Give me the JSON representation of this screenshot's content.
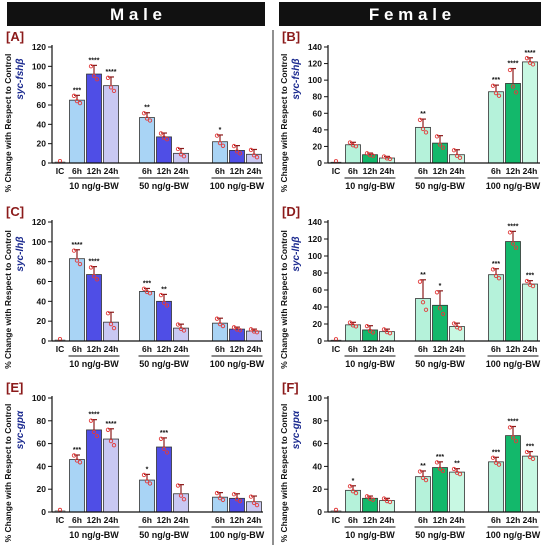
{
  "headers": {
    "male": "M a l e",
    "female": "F e m a l e"
  },
  "colors": {
    "male": [
      "#a9d4f5",
      "#4f4ee6",
      "#c9c8f2"
    ],
    "female": [
      "#b5f2da",
      "#13b86b",
      "#c8f8e3"
    ],
    "control": "#dddddd",
    "error": "#8b1a1a",
    "point": "#e23b3b",
    "panel_label": "#8b1a1a",
    "gene_label": "#1b2a8f"
  },
  "shared": {
    "ylabel": "% Change with Respect to Control",
    "time_labels": [
      "6h",
      "12h",
      "24h"
    ],
    "control_label": "IC",
    "groups": [
      "10 ng/g-BW",
      "50 ng/g-BW",
      "100 ng/g-BW"
    ]
  },
  "chart_data": [
    {
      "panel": "[A]",
      "sex": "male",
      "gene": "syc-fshβ",
      "type": "bar",
      "ylim": [
        0,
        120
      ],
      "ticks": [
        0,
        20,
        40,
        60,
        80,
        100,
        120
      ],
      "control": 1,
      "series": [
        {
          "values": [
            65,
            92,
            80
          ],
          "errors": [
            5,
            9,
            9
          ],
          "sig": [
            "***",
            "****",
            "****"
          ]
        },
        {
          "values": [
            47,
            27,
            10
          ],
          "errors": [
            5,
            4,
            5
          ],
          "sig": [
            "**",
            "",
            ""
          ]
        },
        {
          "values": [
            22,
            13,
            9
          ],
          "errors": [
            7,
            5,
            5
          ],
          "sig": [
            "*",
            "",
            ""
          ]
        }
      ]
    },
    {
      "panel": "[B]",
      "sex": "female",
      "gene": "syc-fshβ",
      "type": "bar",
      "ylim": [
        0,
        140
      ],
      "ticks": [
        0,
        20,
        40,
        60,
        80,
        100,
        120,
        140
      ],
      "control": 1,
      "series": [
        {
          "values": [
            22,
            10,
            6
          ],
          "errors": [
            3,
            2,
            2
          ],
          "sig": [
            "",
            "",
            ""
          ]
        },
        {
          "values": [
            43,
            24,
            10
          ],
          "errors": [
            10,
            9,
            6
          ],
          "sig": [
            "**",
            "",
            ""
          ]
        },
        {
          "values": [
            86,
            96,
            122
          ],
          "errors": [
            8,
            18,
            5
          ],
          "sig": [
            "***",
            "****",
            "****"
          ]
        }
      ]
    },
    {
      "panel": "[C]",
      "sex": "male",
      "gene": "syc-lhβ",
      "type": "bar",
      "ylim": [
        0,
        120
      ],
      "ticks": [
        0,
        20,
        40,
        60,
        80,
        100,
        120
      ],
      "control": 1,
      "series": [
        {
          "values": [
            83,
            67,
            19
          ],
          "errors": [
            9,
            8,
            10
          ],
          "sig": [
            "****",
            "****",
            ""
          ]
        },
        {
          "values": [
            50,
            40,
            13
          ],
          "errors": [
            3,
            7,
            4
          ],
          "sig": [
            "***",
            "**",
            ""
          ]
        },
        {
          "values": [
            18,
            12,
            10
          ],
          "errors": [
            5,
            2,
            2
          ],
          "sig": [
            "",
            "",
            ""
          ]
        }
      ]
    },
    {
      "panel": "[D]",
      "sex": "female",
      "gene": "syc-lhβ",
      "type": "bar",
      "ylim": [
        0,
        140
      ],
      "ticks": [
        0,
        20,
        40,
        60,
        80,
        100,
        120,
        140
      ],
      "control": 1,
      "series": [
        {
          "values": [
            19,
            13,
            11
          ],
          "errors": [
            3,
            5,
            3
          ],
          "sig": [
            "",
            "",
            ""
          ]
        },
        {
          "values": [
            50,
            42,
            17
          ],
          "errors": [
            22,
            17,
            4
          ],
          "sig": [
            "**",
            "*",
            ""
          ]
        },
        {
          "values": [
            78,
            117,
            67
          ],
          "errors": [
            7,
            12,
            4
          ],
          "sig": [
            "***",
            "****",
            "***"
          ]
        }
      ]
    },
    {
      "panel": "[E]",
      "sex": "male",
      "gene": "syc-gpα",
      "type": "bar",
      "ylim": [
        0,
        100
      ],
      "ticks": [
        0,
        20,
        40,
        60,
        80,
        100
      ],
      "control": 1,
      "series": [
        {
          "values": [
            46,
            72,
            64
          ],
          "errors": [
            4,
            9,
            9
          ],
          "sig": [
            "***",
            "****",
            "****"
          ]
        },
        {
          "values": [
            28,
            57,
            16
          ],
          "errors": [
            5,
            8,
            8
          ],
          "sig": [
            "*",
            "***",
            ""
          ]
        },
        {
          "values": [
            13,
            12,
            9
          ],
          "errors": [
            4,
            4,
            5
          ],
          "sig": [
            "",
            "",
            ""
          ]
        }
      ]
    },
    {
      "panel": "[F]",
      "sex": "female",
      "gene": "syc-gpα",
      "type": "bar",
      "ylim": [
        0,
        100
      ],
      "ticks": [
        0,
        20,
        40,
        60,
        80,
        100
      ],
      "control": 1,
      "series": [
        {
          "values": [
            19,
            12,
            10
          ],
          "errors": [
            4,
            2,
            2
          ],
          "sig": [
            "*",
            "",
            ""
          ]
        },
        {
          "values": [
            31,
            39,
            35
          ],
          "errors": [
            5,
            5,
            3
          ],
          "sig": [
            "**",
            "***",
            "**"
          ]
        },
        {
          "values": [
            44,
            67,
            49
          ],
          "errors": [
            4,
            8,
            4
          ],
          "sig": [
            "***",
            "****",
            "***"
          ]
        }
      ]
    }
  ]
}
